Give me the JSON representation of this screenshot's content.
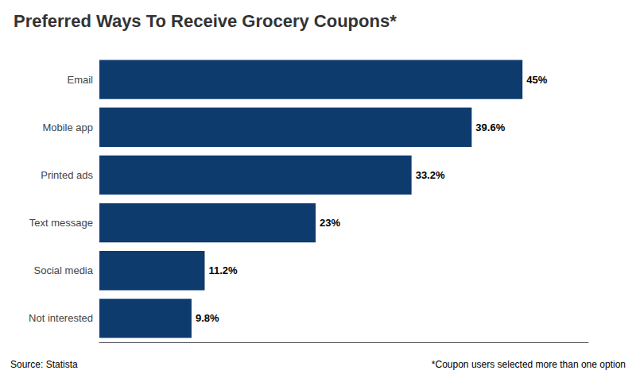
{
  "chart_data": {
    "type": "bar",
    "orientation": "horizontal",
    "title": "Preferred Ways To Receive Grocery Coupons*",
    "categories": [
      "Not interested",
      "Social media",
      "Text message",
      "Printed ads",
      "Mobile app",
      "Email"
    ],
    "values": [
      9.8,
      11.2,
      23.0,
      33.2,
      39.6,
      45.0
    ],
    "value_labels": [
      "9.8%",
      "11.2%",
      "23%",
      "33.2%",
      "39.6%",
      "45%"
    ],
    "data_labels": true,
    "color": "#0d3b6e",
    "xlim": [
      0,
      52
    ],
    "tick_labels": "y",
    "grid": false,
    "annotations": [
      "Source: Statista",
      "*Coupon users selected more than one option"
    ]
  }
}
